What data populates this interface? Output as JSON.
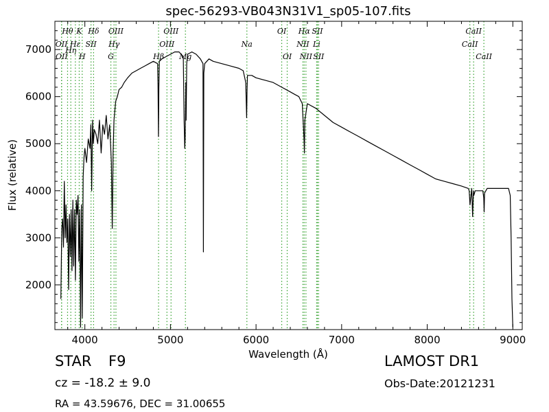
{
  "chart_data": {
    "type": "line",
    "title": "spec-56293-VB043N31V1_sp05-107.fits",
    "xlabel": "Wavelength (Å)",
    "ylabel": "Flux (relative)",
    "xlim": [
      3650,
      9110
    ],
    "ylim": [
      1050,
      7600
    ],
    "xticks": [
      4000,
      5000,
      6000,
      7000,
      8000,
      9000
    ],
    "yticks": [
      2000,
      3000,
      4000,
      5000,
      6000,
      7000
    ],
    "grid": false,
    "colors": {
      "spectrum": "#000000",
      "line_markers": "#33a02c"
    },
    "spectrum": {
      "x": [
        3720,
        3730,
        3740,
        3750,
        3760,
        3770,
        3780,
        3790,
        3800,
        3810,
        3820,
        3830,
        3840,
        3850,
        3860,
        3870,
        3880,
        3890,
        3900,
        3910,
        3920,
        3930,
        3940,
        3950,
        3960,
        3970,
        3980,
        3990,
        4000,
        4020,
        4040,
        4060,
        4070,
        4080,
        4090,
        4100,
        4110,
        4130,
        4150,
        4170,
        4190,
        4210,
        4230,
        4250,
        4270,
        4290,
        4300,
        4310,
        4320,
        4330,
        4340,
        4360,
        4380,
        4400,
        4430,
        4460,
        4500,
        4550,
        4600,
        4650,
        4700,
        4750,
        4800,
        4850,
        4855,
        4860,
        4865,
        4870,
        4900,
        4950,
        5000,
        5050,
        5100,
        5150,
        5160,
        5167,
        5172,
        5180,
        5183,
        5190,
        5200,
        5250,
        5300,
        5350,
        5380,
        5385,
        5390,
        5400,
        5450,
        5500,
        5600,
        5700,
        5800,
        5850,
        5880,
        5890,
        5895,
        5900,
        5950,
        6000,
        6100,
        6200,
        6300,
        6400,
        6450,
        6500,
        6540,
        6560,
        6565,
        6570,
        6600,
        6700,
        6800,
        6900,
        7000,
        7100,
        7200,
        7300,
        7400,
        7500,
        7600,
        7700,
        7800,
        7900,
        8000,
        8100,
        8200,
        8300,
        8400,
        8480,
        8490,
        8500,
        8520,
        8530,
        8540,
        8545,
        8560,
        8600,
        8650,
        8660,
        8665,
        8670,
        8700,
        8750,
        8800,
        8850,
        8900,
        8950,
        8970,
        8980,
        8990,
        9000
      ],
      "y": [
        1700,
        3200,
        3400,
        2800,
        4200,
        3000,
        3700,
        2900,
        3400,
        1900,
        3500,
        2600,
        3600,
        2300,
        3800,
        2400,
        3600,
        2100,
        3800,
        3500,
        3900,
        2500,
        3600,
        1100,
        3700,
        1300,
        4300,
        4700,
        4900,
        4600,
        5100,
        4900,
        5400,
        4000,
        5500,
        5000,
        5300,
        5200,
        5000,
        5500,
        4800,
        5400,
        5200,
        5600,
        5100,
        5400,
        5000,
        4600,
        3200,
        4800,
        5500,
        5900,
        6000,
        6150,
        6200,
        6300,
        6400,
        6500,
        6550,
        6600,
        6650,
        6700,
        6750,
        6700,
        6200,
        5150,
        6200,
        6750,
        6800,
        6850,
        6900,
        6950,
        6950,
        6850,
        5500,
        4900,
        5100,
        6300,
        5500,
        6700,
        6900,
        6950,
        6900,
        6800,
        6700,
        2700,
        6500,
        6700,
        6800,
        6750,
        6700,
        6650,
        6600,
        6550,
        6300,
        5550,
        6100,
        6450,
        6450,
        6400,
        6350,
        6300,
        6200,
        6100,
        6050,
        6000,
        5850,
        5100,
        4800,
        5500,
        5850,
        5750,
        5600,
        5450,
        5350,
        5250,
        5150,
        5050,
        4950,
        4850,
        4750,
        4650,
        4550,
        4450,
        4350,
        4250,
        4200,
        4150,
        4100,
        4050,
        4000,
        3700,
        4050,
        3450,
        4000,
        3900,
        4000,
        4000,
        4000,
        3850,
        3550,
        3950,
        4050,
        4050,
        4050,
        4050,
        4050,
        4050,
        3900,
        3000,
        1700,
        1100
      ]
    },
    "spectral_lines": [
      {
        "name": "Hθ",
        "x": 3798,
        "row": 0
      },
      {
        "name": "OII",
        "x": 3727,
        "row": 1
      },
      {
        "name": "OII",
        "x": 3729,
        "row": 2
      },
      {
        "name": "Hη",
        "x": 3836,
        "row": 1.5
      },
      {
        "name": "Hε",
        "x": 3889,
        "row": 1
      },
      {
        "name": "K",
        "x": 3934,
        "row": 0
      },
      {
        "name": "SII",
        "x": 4072,
        "row": 1
      },
      {
        "name": "H",
        "x": 3969,
        "row": 2
      },
      {
        "name": "Hδ",
        "x": 4102,
        "row": 0
      },
      {
        "name": "OIII",
        "x": 4363,
        "row": 0
      },
      {
        "name": "Hγ",
        "x": 4341,
        "row": 1
      },
      {
        "name": "G",
        "x": 4304,
        "row": 2
      },
      {
        "name": "OIII",
        "x": 5007,
        "row": 0
      },
      {
        "name": "OIII",
        "x": 4959,
        "row": 1
      },
      {
        "name": "Hβ",
        "x": 4861,
        "row": 2
      },
      {
        "name": "Mg",
        "x": 5175,
        "row": 2
      },
      {
        "name": "Na",
        "x": 5893,
        "row": 1
      },
      {
        "name": "OI",
        "x": 6300,
        "row": 0
      },
      {
        "name": "OI",
        "x": 6364,
        "row": 2
      },
      {
        "name": "Hα",
        "x": 6563,
        "row": 0
      },
      {
        "name": "SII",
        "x": 6717,
        "row": 0
      },
      {
        "name": "NII",
        "x": 6548,
        "row": 1
      },
      {
        "name": "Li",
        "x": 6708,
        "row": 1
      },
      {
        "name": "NII",
        "x": 6583,
        "row": 2
      },
      {
        "name": "SII",
        "x": 6731,
        "row": 2
      },
      {
        "name": "CaII",
        "x": 8542,
        "row": 0
      },
      {
        "name": "CaII",
        "x": 8498,
        "row": 1
      },
      {
        "name": "CaII",
        "x": 8662,
        "row": 2
      }
    ]
  },
  "info": {
    "object_type": "STAR",
    "subclass": "F9",
    "redshift": "cz = -18.2 ± 9.0",
    "coords": "RA = 43.59676, DEC = 31.00655",
    "survey": "LAMOST DR1",
    "obs_date": "Obs-Date:20121231"
  }
}
